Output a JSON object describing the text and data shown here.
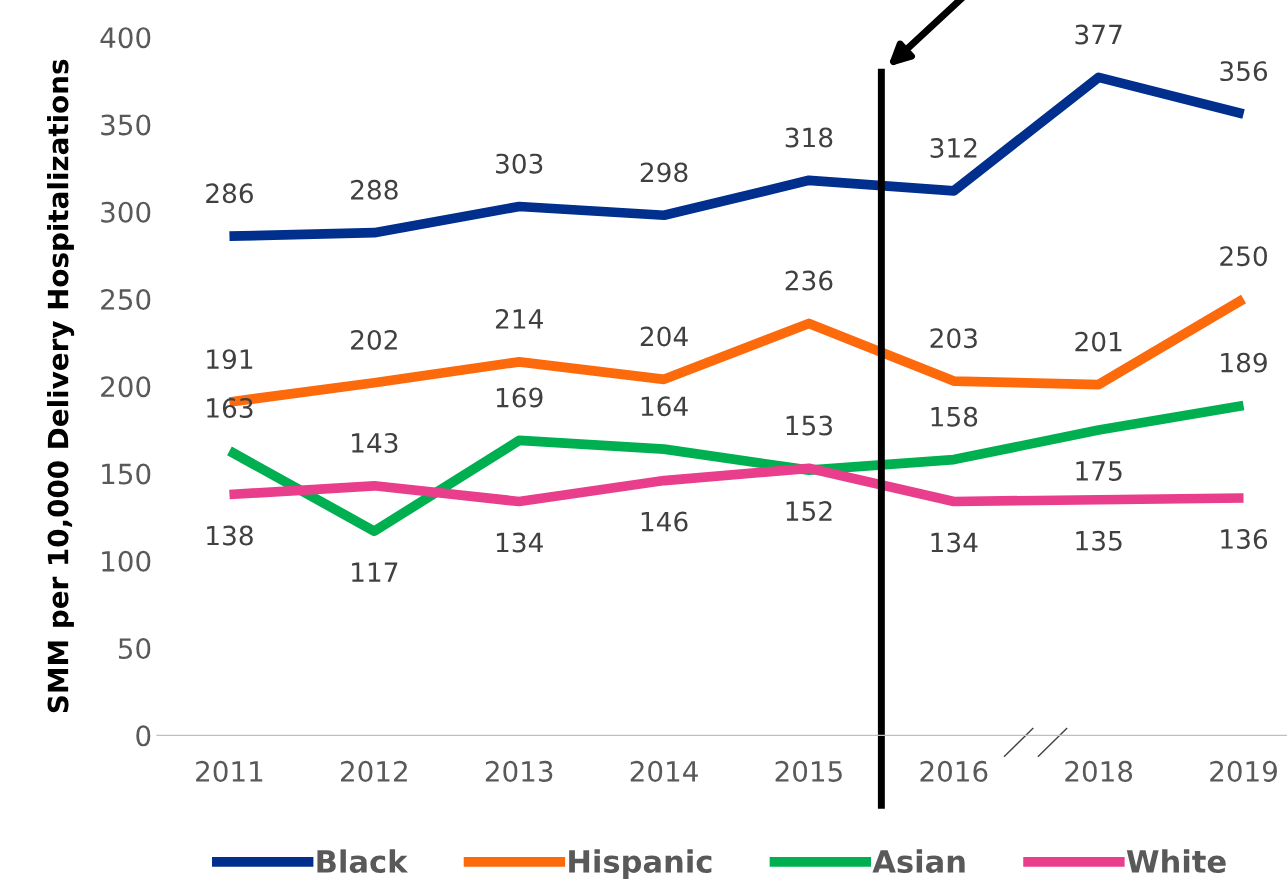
{
  "chart_data": {
    "type": "line",
    "ylabel": "SMM per 10,000 Delivery Hospitalizations",
    "categories": [
      "2011",
      "2012",
      "2013",
      "2014",
      "2015",
      "2016",
      "2018",
      "2019"
    ],
    "series": [
      {
        "name": "Black",
        "color": "#002f8e",
        "values": [
          286,
          288,
          303,
          298,
          318,
          312,
          377,
          356
        ]
      },
      {
        "name": "Hispanic",
        "color": "#fd6a0c",
        "values": [
          191,
          202,
          214,
          204,
          236,
          203,
          201,
          250
        ]
      },
      {
        "name": "Asian",
        "color": "#00b050",
        "values": [
          163,
          117,
          169,
          164,
          152,
          158,
          175,
          189
        ]
      },
      {
        "name": "White",
        "color": "#e83e8c",
        "values": [
          138,
          143,
          134,
          146,
          153,
          134,
          135,
          136
        ]
      }
    ],
    "ylim": [
      0,
      400
    ],
    "yticks": [
      0,
      50,
      100,
      150,
      200,
      250,
      300,
      350,
      400
    ],
    "data_labels": true,
    "legend": "bottom",
    "grid": false,
    "marker": "none",
    "line_style": "solid"
  }
}
